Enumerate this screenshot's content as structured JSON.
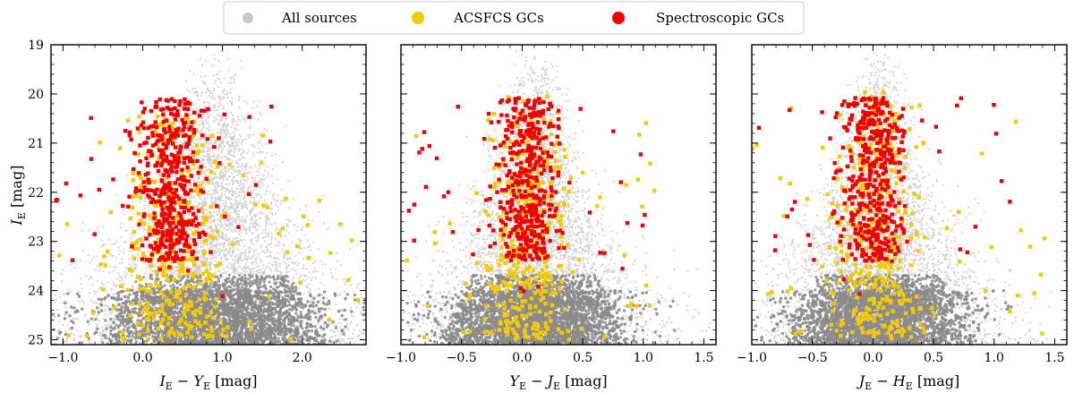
{
  "chart_data": {
    "type": "scatter",
    "legend": {
      "placement": "top-center",
      "entries": [
        {
          "label": "All sources",
          "color": "#c8c8c8"
        },
        {
          "label": "ACSFCS GCs",
          "color": "#f5c800"
        },
        {
          "label": "Spectroscopic GCs",
          "color": "#ee0000"
        }
      ]
    },
    "colors": {
      "all_sources_dense": "#8a8a8a",
      "all_sources_sparse": "#c9c9c9",
      "acsfcs": "#f5c800",
      "spectroscopic": "#ee0000"
    },
    "ylabel": {
      "main": "I",
      "sub": "E",
      "unit": "[mag]"
    },
    "ylim": [
      25.1,
      19.0
    ],
    "y_inverted": true,
    "yticks": [
      19,
      20,
      21,
      22,
      23,
      24,
      25
    ],
    "panels": [
      {
        "xlabel": {
          "a": "I",
          "a_sub": "E",
          "b": "Y",
          "b_sub": "E",
          "unit": "[mag]"
        },
        "xlim": [
          -1.15,
          2.8
        ],
        "xticks": [
          -1.0,
          0.0,
          1.0,
          2.0
        ],
        "xtick_labels": [
          "−1.0",
          "0.0",
          "1.0",
          "2.0"
        ],
        "all_sources": {
          "description": "broad swarm; dense near color 0.5–1.8 at faint mags",
          "color_center": 0.9,
          "color_spread": 0.55
        },
        "acsfcs_gcs": {
          "color_range": [
            -1.1,
            2.7
          ],
          "center": 0.35,
          "spread": 0.25,
          "mag_range": [
            20.3,
            25.0
          ]
        },
        "spectroscopic_gcs": {
          "color_range": [
            -1.1,
            1.75
          ],
          "center": 0.35,
          "spread": 0.22,
          "mag_range": [
            19.5,
            24.4
          ]
        }
      },
      {
        "xlabel": {
          "a": "Y",
          "a_sub": "E",
          "b": "J",
          "b_sub": "E",
          "unit": "[mag]"
        },
        "xlim": [
          -1.0,
          1.6
        ],
        "xticks": [
          -1.0,
          -0.5,
          0.0,
          0.5,
          1.0,
          1.5
        ],
        "xtick_labels": [
          "−1.0",
          "−0.5",
          "0.0",
          "0.5",
          "1.0",
          "1.5"
        ],
        "all_sources": {
          "description": "funnel-shaped locus centered near 0.1",
          "color_center": 0.1,
          "color_spread": 0.3
        },
        "acsfcs_gcs": {
          "color_range": [
            -1.0,
            1.1
          ],
          "center": 0.05,
          "spread": 0.14,
          "mag_range": [
            20.0,
            25.0
          ]
        },
        "spectroscopic_gcs": {
          "color_range": [
            -1.0,
            1.1
          ],
          "center": 0.05,
          "spread": 0.12,
          "mag_range": [
            19.5,
            24.4
          ]
        }
      },
      {
        "xlabel": {
          "a": "J",
          "a_sub": "E",
          "b": "H",
          "b_sub": "E",
          "unit": "[mag]"
        },
        "xlim": [
          -1.0,
          1.6
        ],
        "xticks": [
          -1.0,
          -0.5,
          0.0,
          0.5,
          1.0,
          1.5
        ],
        "xtick_labels": [
          "−1.0",
          "−0.5",
          "0.0",
          "0.5",
          "1.0",
          "1.5"
        ],
        "all_sources": {
          "description": "funnel-shaped locus centered near 0.05",
          "color_center": 0.05,
          "color_spread": 0.3
        },
        "acsfcs_gcs": {
          "color_range": [
            -1.0,
            1.55
          ],
          "center": 0.0,
          "spread": 0.15,
          "mag_range": [
            19.9,
            25.0
          ]
        },
        "spectroscopic_gcs": {
          "color_range": [
            -1.0,
            1.25
          ],
          "center": 0.0,
          "spread": 0.13,
          "mag_range": [
            19.5,
            24.4
          ]
        }
      }
    ]
  }
}
